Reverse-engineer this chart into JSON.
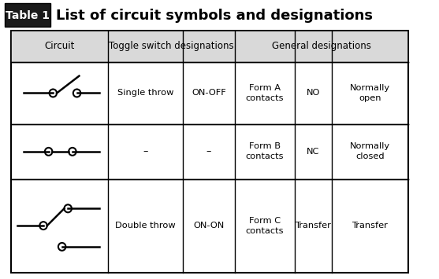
{
  "title_box_text": "Table 1",
  "title_text": "List of circuit symbols and designations",
  "header_row": [
    "Circuit",
    "Toggle switch designations",
    "",
    "General designations",
    "",
    ""
  ],
  "sub_header": [
    "",
    "Single throw / –",
    "ON-OFF / –",
    "Form A contacts / Form B contacts / Form C contacts",
    "NO / NC / Transfer",
    "Normally open / Normally closed / Transfer"
  ],
  "col_labels": [
    "Circuit",
    "Toggle switch\ndesignations",
    "ON-OFF\nON-ON",
    "Form A\ncontacts\nForm B\ncontacts\nForm C\ncontacts",
    "NO\nNC\nTransfer",
    "Normally\nopen\nNormally\nclosed\nTransfer"
  ],
  "bg_header": "#d9d9d9",
  "bg_white": "#ffffff",
  "border_color": "#000000",
  "title_bg": "#1a1a1a",
  "title_fg": "#ffffff",
  "fig_bg": "#ffffff"
}
